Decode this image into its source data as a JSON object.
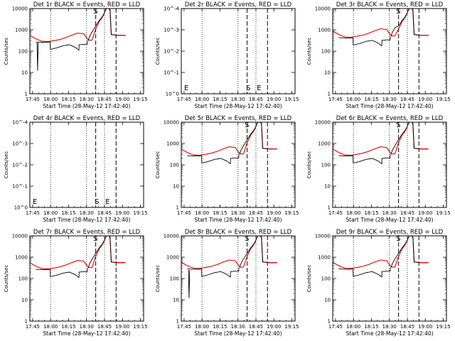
{
  "figure": {
    "x_axis_title": "Start Time (28-May-12 17:42:40)",
    "y_axis_title": "Counts/sec",
    "x_tick_labels": [
      "17:45",
      "18:00",
      "18:15",
      "18:30",
      "18:45",
      "19:00",
      "19:15"
    ],
    "y_tick_labels": [
      "1",
      "10",
      "100",
      "1000",
      "10000"
    ],
    "empty_y_tick_labels": [
      "10^0",
      "10^-1",
      "10^-2",
      "10^-3",
      "10^-4"
    ],
    "start_marker": "S",
    "end_marker": "E",
    "empty_left_marker": "E"
  },
  "chart_data": [
    {
      "type": "line",
      "title": "Det 1r BLACK = Events, RED = LLD",
      "empty": false,
      "scale": 1.0,
      "dip": true,
      "xlim": [
        0,
        95
      ],
      "ylim": [
        1,
        10000
      ],
      "xlabel": "Start Time (28-May-12 17:42:40)",
      "ylabel": "Counts/sec"
    },
    {
      "type": "line",
      "title": "Det 2r BLACK = Events, RED = LLD",
      "empty": true,
      "scale": 1.0,
      "dip": false,
      "xlim": [
        0,
        95
      ],
      "xlabel": "Start Time (28-May-12 17:42:40)",
      "ylabel": "Counts/sec"
    },
    {
      "type": "line",
      "title": "Det 3r BLACK = Events, RED = LLD",
      "empty": false,
      "scale": 1.6,
      "dip": false,
      "xlim": [
        0,
        95
      ],
      "ylim": [
        1,
        10000
      ],
      "xlabel": "Start Time (28-May-12 17:42:40)",
      "ylabel": "Counts/sec"
    },
    {
      "type": "line",
      "title": "Det 4r BLACK = Events, RED = LLD",
      "empty": true,
      "scale": 1.0,
      "dip": false,
      "xlim": [
        0,
        95
      ],
      "xlabel": "Start Time (28-May-12 17:42:40)",
      "ylabel": "Counts/sec"
    },
    {
      "type": "line",
      "title": "Det 5r BLACK = Events, RED = LLD",
      "empty": false,
      "scale": 1.0,
      "dip": false,
      "xlim": [
        0,
        95
      ],
      "ylim": [
        1,
        10000
      ],
      "xlabel": "Start Time (28-May-12 17:42:40)",
      "ylabel": "Counts/sec"
    },
    {
      "type": "line",
      "title": "Det 6r BLACK = Events, RED = LLD",
      "empty": false,
      "scale": 1.0,
      "dip": false,
      "xlim": [
        0,
        95
      ],
      "ylim": [
        1,
        10000
      ],
      "xlabel": "Start Time (28-May-12 17:42:40)",
      "ylabel": "Counts/sec"
    },
    {
      "type": "line",
      "title": "Det 7r BLACK = Events, RED = LLD",
      "empty": false,
      "scale": 1.0,
      "dip": false,
      "xlim": [
        0,
        95
      ],
      "ylim": [
        1,
        10000
      ],
      "xlabel": "Start Time (28-May-12 17:42:40)",
      "ylabel": "Counts/sec"
    },
    {
      "type": "line",
      "title": "Det 8r BLACK = Events, RED = LLD",
      "empty": false,
      "scale": 1.05,
      "dip": true,
      "xlim": [
        0,
        95
      ],
      "ylim": [
        1,
        10000
      ],
      "xlabel": "Start Time (28-May-12 17:42:40)",
      "ylabel": "Counts/sec"
    },
    {
      "type": "line",
      "title": "Det 9r BLACK = Events, RED = LLD",
      "empty": false,
      "scale": 1.05,
      "dip": false,
      "xlim": [
        0,
        95
      ],
      "ylim": [
        1,
        10000
      ],
      "xlabel": "Start Time (28-May-12 17:42:40)",
      "ylabel": "Counts/sec"
    }
  ],
  "series_template": {
    "units": "minutes after 17:42:40",
    "lld_red": {
      "name": "LLD",
      "color": "#e00000",
      "x": [
        0,
        5,
        10,
        15,
        20,
        25,
        30,
        35,
        40,
        45,
        48,
        50,
        52,
        55,
        58,
        60,
        62,
        63,
        64,
        65,
        66,
        67,
        68,
        70,
        72,
        75,
        78,
        80
      ],
      "y": [
        550,
        380,
        290,
        280,
        310,
        350,
        430,
        560,
        700,
        650,
        380,
        320,
        330,
        1100,
        2500,
        3500,
        5500,
        8000,
        11000,
        11500,
        11000,
        9000,
        600,
        580,
        560,
        560,
        560,
        550
      ]
    },
    "events_black_segments": {
      "name": "Events",
      "color": "#000000",
      "segments": [
        {
          "x": [
            5,
            10,
            15,
            17
          ],
          "y": [
            270,
            260,
            260,
            270
          ]
        },
        {
          "x": [
            17,
            17.1,
            22,
            28,
            33,
            38,
            41
          ],
          "y": [
            270,
            120,
            140,
            180,
            200,
            150,
            110
          ]
        },
        {
          "x": [
            41,
            41.1,
            45,
            48,
            48.1
          ],
          "y": [
            110,
            200,
            210,
            210,
            300
          ]
        },
        {
          "x": [
            48.5,
            50,
            52,
            55,
            58,
            60,
            62,
            63,
            64,
            65,
            66,
            67,
            68,
            70,
            72
          ],
          "y": [
            300,
            500,
            800,
            1500,
            2800,
            3800,
            5800,
            8000,
            11000,
            11000,
            10000,
            8000,
            600,
            580,
            560
          ]
        }
      ],
      "dip": {
        "x": [
          6,
          6.5,
          7
        ],
        "y": [
          250,
          12,
          250
        ]
      }
    }
  },
  "vertical_lines_dotted_min": [
    17.33,
    47.33,
    62.33
  ],
  "vertical_lines_dashed_min": [
    55,
    72
  ],
  "start_marker_min": 56,
  "end_marker_min": 65,
  "red_flat_after_peak": 550
}
